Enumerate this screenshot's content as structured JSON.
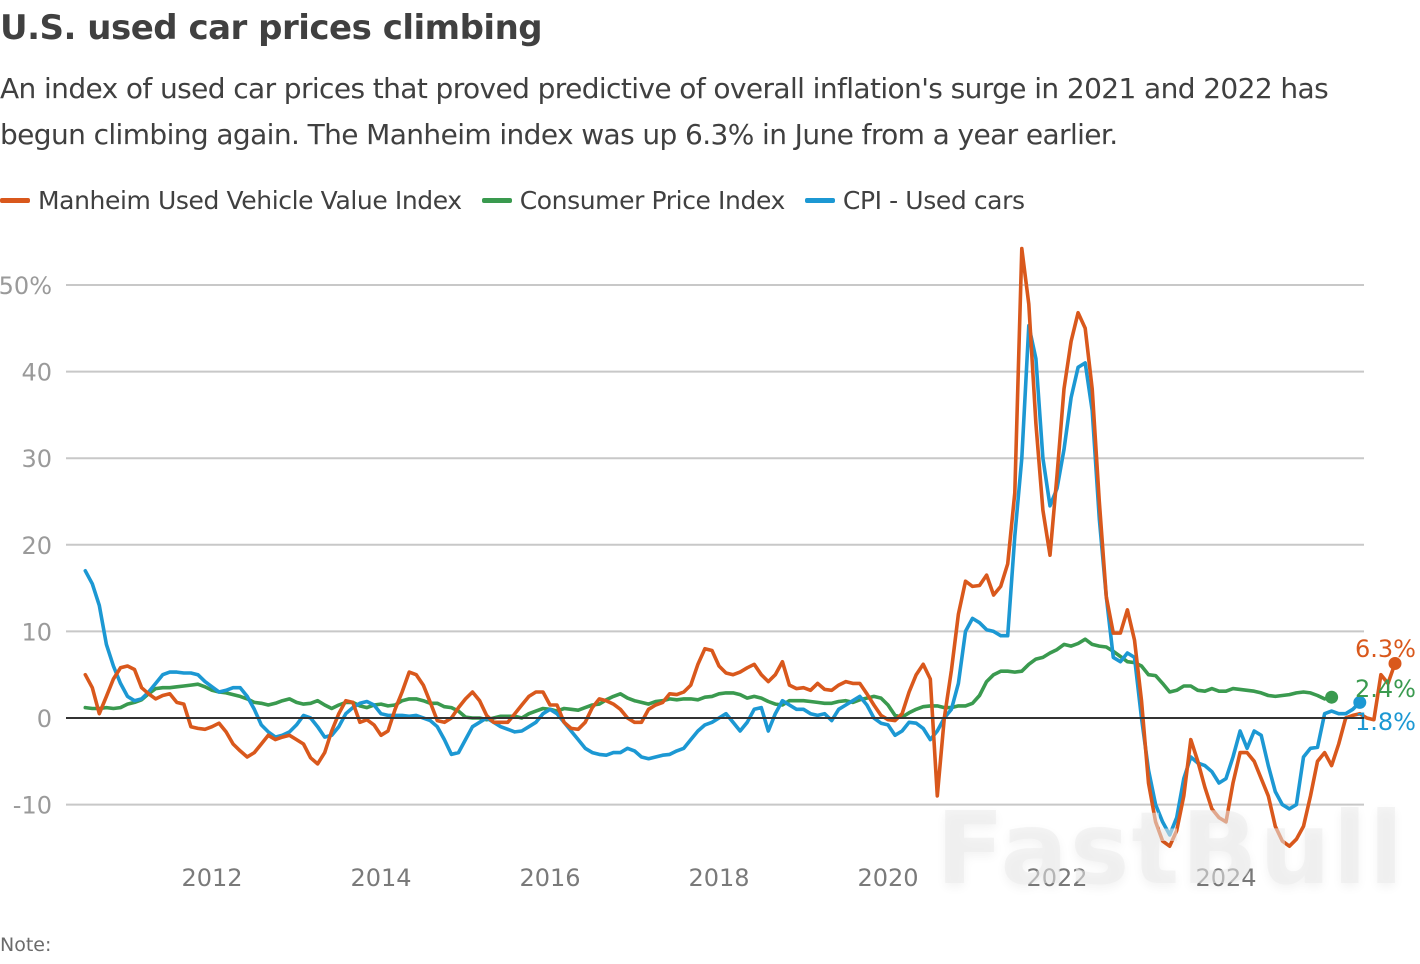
{
  "header": {
    "title": "U.S. used car prices climbing",
    "subtitle": "An index of used car prices that proved predictive of overall inflation's surge in 2021 and 2022 has begun climbing again. The Manheim index was up 6.3% in June from a year earlier."
  },
  "footer": {
    "note": "Note:"
  },
  "watermark": "FastBull",
  "chart_data": {
    "type": "line",
    "title": "U.S. used car prices climbing",
    "xlabel": "",
    "ylabel": "",
    "ylim": [
      -10,
      50
    ],
    "xlim": [
      "2010-07",
      "2024-06"
    ],
    "yticks": [
      50,
      40,
      30,
      20,
      10,
      0,
      -10
    ],
    "ytick_labels": [
      "50%",
      "40",
      "30",
      "20",
      "10",
      "0",
      "-10"
    ],
    "xticks": [
      2012,
      2014,
      2016,
      2018,
      2020,
      2022,
      2024
    ],
    "xtick_labels": [
      "2012",
      "2014",
      "2016",
      "2018",
      "2020",
      "2022",
      "2024"
    ],
    "grid": true,
    "legend": "top-left",
    "start": "2010-07",
    "frequency": "monthly",
    "series": [
      {
        "name": "Manheim Used Vehicle Value Index",
        "color": "#d9581c",
        "end_label": "6.3%",
        "values": [
          5.0,
          3.5,
          0.5,
          2.5,
          4.5,
          5.8,
          6.0,
          5.6,
          3.5,
          2.8,
          2.2,
          2.6,
          2.8,
          1.8,
          1.6,
          -1.0,
          -1.2,
          -1.3,
          -1.0,
          -0.6,
          -1.6,
          -3.0,
          -3.8,
          -4.5,
          -4.0,
          -3.0,
          -2.0,
          -2.5,
          -2.2,
          -2.0,
          -2.5,
          -3.0,
          -4.6,
          -5.3,
          -4.0,
          -1.5,
          0.5,
          2.0,
          1.8,
          -0.5,
          -0.2,
          -0.8,
          -2.0,
          -1.5,
          1.0,
          3.0,
          5.3,
          5.0,
          3.8,
          1.8,
          -0.3,
          -0.5,
          0.0,
          1.2,
          2.2,
          3.0,
          2.0,
          0.3,
          -0.5,
          -0.5,
          -0.5,
          0.5,
          1.5,
          2.5,
          3.0,
          3.0,
          1.5,
          1.5,
          -0.5,
          -1.2,
          -1.3,
          -0.5,
          1.2,
          2.2,
          2.0,
          1.6,
          1.0,
          0.0,
          -0.5,
          -0.5,
          1.0,
          1.5,
          1.8,
          2.8,
          2.7,
          3.0,
          3.8,
          6.2,
          8.0,
          7.8,
          6.0,
          5.2,
          5.0,
          5.3,
          5.8,
          6.2,
          5.0,
          4.2,
          5.0,
          6.5,
          3.8,
          3.4,
          3.5,
          3.2,
          4.0,
          3.3,
          3.2,
          3.8,
          4.2,
          4.0,
          4.0,
          2.8,
          1.5,
          0.3,
          -0.2,
          -0.3,
          0.5,
          3.0,
          5.0,
          6.2,
          4.5,
          -9.0,
          0.0,
          5.5,
          12.0,
          15.8,
          15.2,
          15.3,
          16.5,
          14.2,
          15.2,
          17.8,
          26.0,
          54.2,
          47.8,
          34.0,
          24.0,
          18.8,
          28.0,
          38.0,
          43.5,
          46.8,
          45.0,
          38.0,
          25.0,
          14.0,
          9.8,
          9.8,
          12.5,
          9.0,
          2.0,
          -7.5,
          -12.0,
          -14.2,
          -14.8,
          -13.0,
          -9.0,
          -2.5,
          -5.0,
          -8.0,
          -10.5,
          -11.5,
          -12.0,
          -7.5,
          -4.0,
          -4.0,
          -5.0,
          -7.0,
          -9.0,
          -12.5,
          -14.2,
          -14.8,
          -14.0,
          -12.5,
          -9.0,
          -5.0,
          -4.0,
          -5.5,
          -3.0,
          0.0,
          0.3,
          0.5,
          0.0,
          -0.2,
          5.0,
          4.0,
          6.3
        ]
      },
      {
        "name": "Consumer Price Index",
        "color": "#3a9a4f",
        "end_label": "2.4%",
        "values": [
          1.2,
          1.1,
          1.1,
          1.2,
          1.1,
          1.2,
          1.6,
          1.8,
          2.1,
          2.8,
          3.4,
          3.5,
          3.5,
          3.6,
          3.7,
          3.8,
          3.9,
          3.6,
          3.2,
          3.0,
          2.9,
          2.7,
          2.5,
          2.2,
          1.8,
          1.7,
          1.5,
          1.7,
          2.0,
          2.2,
          1.8,
          1.6,
          1.7,
          2.0,
          1.5,
          1.1,
          1.5,
          1.8,
          1.8,
          1.4,
          1.2,
          1.5,
          1.6,
          1.4,
          1.5,
          2.0,
          2.2,
          2.2,
          2.0,
          1.7,
          1.7,
          1.3,
          1.2,
          0.8,
          0.1,
          0.0,
          0.0,
          -0.2,
          0.0,
          0.2,
          0.2,
          0.2,
          0.0,
          0.5,
          0.8,
          1.1,
          1.0,
          0.8,
          1.1,
          1.0,
          0.9,
          1.2,
          1.5,
          1.6,
          2.1,
          2.5,
          2.8,
          2.3,
          2.0,
          1.8,
          1.6,
          1.9,
          2.0,
          2.2,
          2.1,
          2.2,
          2.2,
          2.1,
          2.4,
          2.5,
          2.8,
          2.9,
          2.9,
          2.7,
          2.3,
          2.5,
          2.3,
          1.9,
          1.6,
          1.5,
          2.0,
          2.0,
          2.0,
          1.9,
          1.8,
          1.7,
          1.7,
          1.9,
          2.0,
          1.8,
          2.1,
          2.3,
          2.5,
          2.3,
          1.5,
          0.3,
          0.1,
          0.6,
          1.0,
          1.3,
          1.4,
          1.4,
          1.2,
          1.2,
          1.4,
          1.4,
          1.7,
          2.6,
          4.2,
          5.0,
          5.4,
          5.4,
          5.3,
          5.4,
          6.2,
          6.8,
          7.0,
          7.5,
          7.9,
          8.5,
          8.3,
          8.6,
          9.1,
          8.5,
          8.3,
          8.2,
          7.7,
          7.1,
          6.5,
          6.4,
          6.0,
          5.0,
          4.9,
          4.0,
          3.0,
          3.2,
          3.7,
          3.7,
          3.2,
          3.1,
          3.4,
          3.1,
          3.1,
          3.4,
          3.3,
          3.2,
          3.1,
          2.9,
          2.6,
          2.5,
          2.6,
          2.7,
          2.9,
          3.0,
          2.9,
          2.6,
          2.2,
          2.4
        ]
      },
      {
        "name": "CPI - Used cars",
        "color": "#1c98d3",
        "end_label": "1.8%",
        "values": [
          17.0,
          15.5,
          13.0,
          8.5,
          6.0,
          4.0,
          2.5,
          2.0,
          2.2,
          3.0,
          4.0,
          5.0,
          5.3,
          5.3,
          5.2,
          5.2,
          5.0,
          4.2,
          3.6,
          3.0,
          3.2,
          3.5,
          3.5,
          2.5,
          1.0,
          -0.8,
          -1.6,
          -2.2,
          -2.0,
          -1.6,
          -0.8,
          0.3,
          0.0,
          -1.0,
          -2.2,
          -2.0,
          -1.0,
          0.5,
          1.2,
          1.7,
          1.9,
          1.5,
          0.5,
          0.3,
          0.3,
          0.3,
          0.2,
          0.3,
          0.0,
          -0.3,
          -1.0,
          -2.5,
          -4.2,
          -4.0,
          -2.5,
          -1.0,
          -0.5,
          0.0,
          -0.5,
          -1.0,
          -1.3,
          -1.6,
          -1.5,
          -1.0,
          -0.5,
          0.5,
          1.0,
          0.5,
          -0.5,
          -1.5,
          -2.5,
          -3.5,
          -4.0,
          -4.2,
          -4.3,
          -4.0,
          -4.0,
          -3.5,
          -3.8,
          -4.5,
          -4.7,
          -4.5,
          -4.3,
          -4.2,
          -3.8,
          -3.5,
          -2.5,
          -1.5,
          -0.8,
          -0.5,
          0.0,
          0.5,
          -0.5,
          -1.5,
          -0.5,
          1.0,
          1.2,
          -1.5,
          0.5,
          2.0,
          1.5,
          1.0,
          1.0,
          0.5,
          0.3,
          0.5,
          -0.3,
          1.0,
          1.5,
          2.0,
          2.5,
          1.5,
          0.0,
          -0.6,
          -0.8,
          -2.0,
          -1.5,
          -0.5,
          -0.6,
          -1.2,
          -2.5,
          -1.5,
          0.0,
          1.0,
          4.0,
          10.0,
          11.5,
          11.0,
          10.2,
          10.0,
          9.5,
          9.5,
          21.0,
          30.0,
          45.3,
          41.5,
          30.0,
          24.5,
          26.5,
          31.0,
          37.0,
          40.5,
          41.0,
          35.5,
          23.0,
          14.0,
          7.0,
          6.5,
          7.5,
          7.0,
          0.0,
          -6.0,
          -10.0,
          -12.0,
          -13.5,
          -11.5,
          -7.0,
          -4.5,
          -5.2,
          -5.5,
          -6.2,
          -7.5,
          -7.0,
          -4.5,
          -1.5,
          -3.5,
          -1.5,
          -2.0,
          -5.5,
          -8.5,
          -10.0,
          -10.5,
          -10.0,
          -4.5,
          -3.5,
          -3.4,
          0.5,
          0.8,
          0.5,
          0.5,
          1.0,
          1.8
        ]
      }
    ],
    "end_values": {
      "Manheim Used Vehicle Value Index": 6.3,
      "Consumer Price Index": 2.4,
      "CPI - Used cars": 1.8
    }
  }
}
